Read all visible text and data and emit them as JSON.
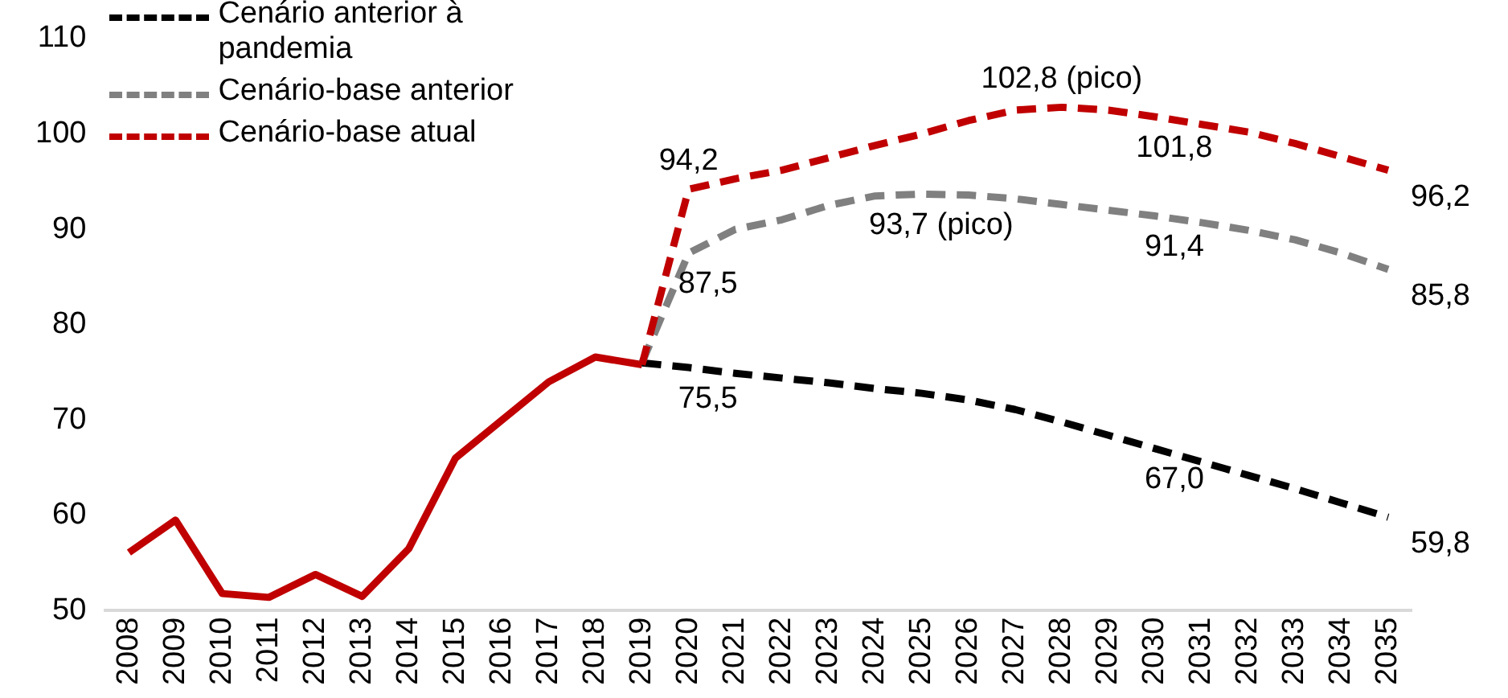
{
  "chart_data": {
    "type": "line",
    "categories": [
      "2008",
      "2009",
      "2010",
      "2011",
      "2012",
      "2013",
      "2014",
      "2015",
      "2016",
      "2017",
      "2018",
      "2019",
      "2020",
      "2021",
      "2022",
      "2023",
      "2024",
      "2025",
      "2026",
      "2027",
      "2028",
      "2029",
      "2030",
      "2031",
      "2032",
      "2033",
      "2034",
      "2035"
    ],
    "ylim": [
      50,
      110
    ],
    "yticks": [
      50,
      60,
      70,
      80,
      90,
      100,
      110
    ],
    "grid": false,
    "legend": "top left",
    "marker": "none",
    "series": [
      {
        "color": "#c00000",
        "line_style": "solid",
        "values": [
          56.1,
          59.5,
          51.8,
          51.4,
          53.8,
          51.5,
          56.5,
          66.0,
          70.0,
          74.0,
          76.6,
          75.8,
          null,
          null,
          null,
          null,
          null,
          null,
          null,
          null,
          null,
          null,
          null,
          null,
          null,
          null,
          null,
          null
        ]
      },
      {
        "name": "Cenário anterior à pandemia",
        "color": "#000000",
        "line_style": "dashed",
        "values": [
          null,
          null,
          null,
          null,
          null,
          null,
          null,
          null,
          null,
          null,
          null,
          76.0,
          75.5,
          74.9,
          74.4,
          73.9,
          73.3,
          72.8,
          72.1,
          71.1,
          69.8,
          68.4,
          67.0,
          65.6,
          64.2,
          62.8,
          61.3,
          59.8
        ],
        "value_labels": [
          null,
          null,
          null,
          null,
          null,
          null,
          null,
          null,
          null,
          null,
          null,
          null,
          "75,5",
          null,
          null,
          null,
          null,
          null,
          null,
          null,
          null,
          null,
          "67,0",
          null,
          null,
          null,
          null,
          "59,8"
        ]
      },
      {
        "name": "Cenário-base anterior",
        "color": "#808080",
        "line_style": "dashed",
        "values": [
          null,
          null,
          null,
          null,
          null,
          null,
          null,
          null,
          null,
          null,
          null,
          76.0,
          87.5,
          90.0,
          91.0,
          92.5,
          93.5,
          93.7,
          93.6,
          93.2,
          92.6,
          92.0,
          91.4,
          90.7,
          89.9,
          88.9,
          87.5,
          85.8
        ],
        "value_labels": [
          null,
          null,
          null,
          null,
          null,
          null,
          null,
          null,
          null,
          null,
          null,
          null,
          "87,5",
          null,
          null,
          null,
          null,
          "93,7 (pico)",
          null,
          null,
          null,
          null,
          "91,4",
          null,
          null,
          null,
          null,
          "85,8"
        ]
      },
      {
        "name": "Cenário-base atual",
        "color": "#c00000",
        "line_style": "dashed",
        "values": [
          null,
          null,
          null,
          null,
          null,
          null,
          null,
          null,
          null,
          null,
          null,
          75.8,
          94.2,
          95.3,
          96.2,
          97.5,
          98.8,
          100.0,
          101.4,
          102.5,
          102.8,
          102.5,
          101.8,
          101.0,
          100.2,
          99.0,
          97.6,
          96.2
        ],
        "value_labels": [
          null,
          null,
          null,
          null,
          null,
          null,
          null,
          null,
          null,
          null,
          null,
          null,
          "94,2",
          null,
          null,
          null,
          null,
          null,
          null,
          null,
          "102,8 (pico)",
          null,
          "101,8",
          null,
          null,
          null,
          null,
          "96,2"
        ]
      }
    ]
  }
}
